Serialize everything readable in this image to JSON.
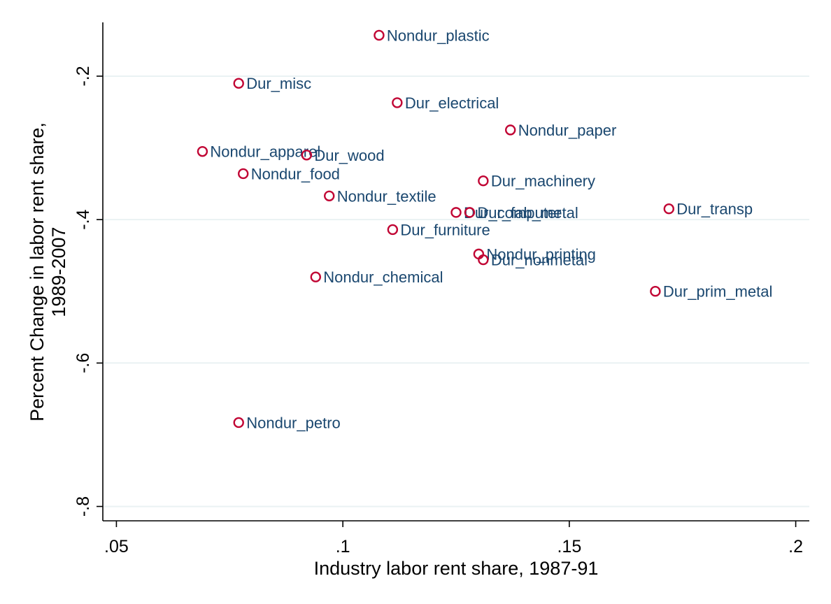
{
  "chart_data": {
    "type": "scatter",
    "title": "",
    "xlabel": "Industry labor rent share, 1987-91",
    "ylabel": [
      "Percent Change in labor rent share,",
      "1989-2007"
    ],
    "xlim": [
      0.047,
      0.203
    ],
    "ylim": [
      -0.82,
      -0.125
    ],
    "xticks": [
      {
        "value": 0.05,
        "label": ".05"
      },
      {
        "value": 0.1,
        "label": ".1"
      },
      {
        "value": 0.15,
        "label": ".15"
      },
      {
        "value": 0.2,
        "label": ".2"
      }
    ],
    "yticks": [
      {
        "value": -0.2,
        "label": "-.2"
      },
      {
        "value": -0.4,
        "label": "-.4"
      },
      {
        "value": -0.6,
        "label": "-.6"
      },
      {
        "value": -0.8,
        "label": "-.8"
      }
    ],
    "grid": true,
    "marker_color": "#c10534",
    "label_color": "#1a476f",
    "points": [
      {
        "label": "Nondur_plastic",
        "x": 0.108,
        "y": -0.143
      },
      {
        "label": "Dur_misc",
        "x": 0.077,
        "y": -0.21
      },
      {
        "label": "Dur_electrical",
        "x": 0.112,
        "y": -0.237
      },
      {
        "label": "Nondur_paper",
        "x": 0.137,
        "y": -0.275
      },
      {
        "label": "Nondur_apparel",
        "x": 0.069,
        "y": -0.305
      },
      {
        "label": "Dur_wood",
        "x": 0.092,
        "y": -0.31
      },
      {
        "label": "Nondur_food",
        "x": 0.078,
        "y": -0.336
      },
      {
        "label": "Dur_machinery",
        "x": 0.131,
        "y": -0.346
      },
      {
        "label": "Nondur_textile",
        "x": 0.097,
        "y": -0.367
      },
      {
        "label": "Dur_computer",
        "x": 0.125,
        "y": -0.39
      },
      {
        "label": "Dur_fab_metal",
        "x": 0.128,
        "y": -0.39
      },
      {
        "label": "Dur_transp",
        "x": 0.172,
        "y": -0.385
      },
      {
        "label": "Dur_furniture",
        "x": 0.111,
        "y": -0.414
      },
      {
        "label": "Nondur_printing",
        "x": 0.13,
        "y": -0.448
      },
      {
        "label": "Dur_nonmetal",
        "x": 0.131,
        "y": -0.456
      },
      {
        "label": "Nondur_chemical",
        "x": 0.094,
        "y": -0.48
      },
      {
        "label": "Dur_prim_metal",
        "x": 0.169,
        "y": -0.5
      },
      {
        "label": "Nondur_petro",
        "x": 0.077,
        "y": -0.683
      }
    ]
  }
}
